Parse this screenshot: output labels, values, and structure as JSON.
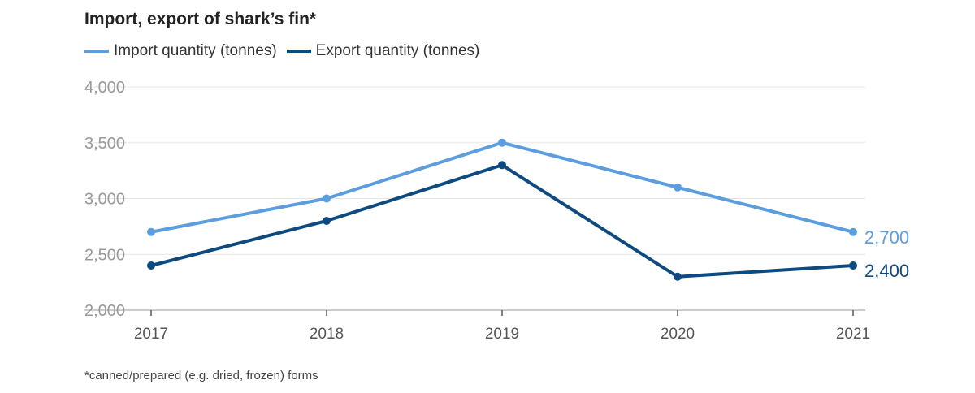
{
  "chart_data": {
    "type": "line",
    "title": "Import, export of shark’s fin*",
    "categories": [
      "2017",
      "2018",
      "2019",
      "2020",
      "2021"
    ],
    "series": [
      {
        "name": "Import quantity (tonnes)",
        "color": "#5b9ddf",
        "values": [
          2700,
          3000,
          3500,
          3100,
          2700
        ],
        "end_label": "2,700"
      },
      {
        "name": "Export quantity (tonnes)",
        "color": "#0d4a80",
        "values": [
          2400,
          2800,
          3300,
          2300,
          2400
        ],
        "end_label": "2,400"
      }
    ],
    "ylim": [
      2000,
      4000
    ],
    "yticks": [
      "2,000",
      "2,500",
      "3,000",
      "3,500",
      "4,000"
    ],
    "ytick_values": [
      2000,
      2500,
      3000,
      3500,
      4000
    ],
    "grid": true,
    "legend": "top-left",
    "footnote": "*canned/prepared (e.g. dried, frozen) forms"
  }
}
